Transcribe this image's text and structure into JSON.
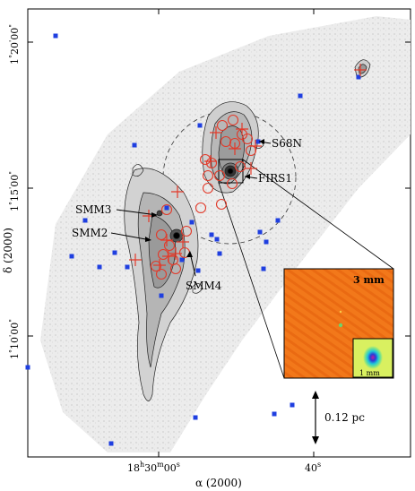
{
  "axes": {
    "x_label": "α (2000)",
    "y_label": "δ (2000)",
    "x_ticks": [
      {
        "label_main": "18",
        "sup1": "h",
        "mid": "30",
        "sup2": "m",
        "end": "00",
        "sup3": "s"
      },
      {
        "label_main": "40",
        "sup1": "s"
      }
    ],
    "y_ticks": [
      {
        "deg": "1",
        "sup_deg": "°",
        "min": "20",
        "sup_min": "'",
        "sec": "00",
        "sup_sec": "\""
      },
      {
        "deg": "1",
        "sup_deg": "°",
        "min": "15",
        "sup_min": "'",
        "sec": "00",
        "sup_sec": "\""
      },
      {
        "deg": "1",
        "sup_deg": "°",
        "min": "10",
        "sup_min": "'",
        "sec": "00",
        "sup_sec": "\""
      }
    ]
  },
  "sources": {
    "s68n": "S68N",
    "firs1": "FIRS1",
    "smm3": "SMM3",
    "smm2": "SMM2",
    "smm4": "SMM4"
  },
  "insets": {
    "large_label": "3 mm",
    "small_label": "1 mm"
  },
  "scale_bar": {
    "label": "0.12 pc"
  },
  "colors": {
    "marker_square": "#1f3fe0",
    "marker_circle": "#e23a2a",
    "marker_cross": "#e23a2a",
    "inset_bg": "#f2781a",
    "inset_small_bg": "#d9f060"
  }
}
